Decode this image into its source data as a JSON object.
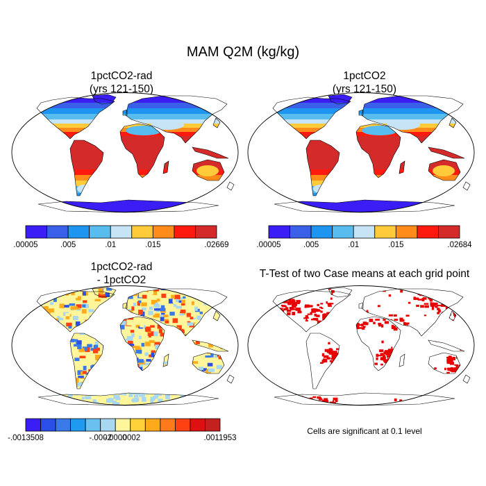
{
  "figure": {
    "title": "MAM Q2M (kg/kg)"
  },
  "panels": {
    "p1": {
      "title_line1": "1pctCO2-rad",
      "title_line2": "(yrs 121-150)"
    },
    "p2": {
      "title_line1": "1pctCO2",
      "title_line2": "(yrs 121-150)"
    },
    "p3": {
      "title_line1": "1pctCO2-rad",
      "title_line2": "- 1pctCO2"
    },
    "p4": {
      "title_line1": "T-Test of two Case means at each grid point",
      "note": "Cells are significant at 0.1 level"
    }
  },
  "colorbars": {
    "abs1": {
      "colors": [
        "#3a1ef5",
        "#3a5fe8",
        "#1e95f0",
        "#58bdee",
        "#c6e4f6",
        "#ffcb3a",
        "#ff8c1a",
        "#ff1a10",
        "#d42a2a"
      ],
      "labels": [
        ".00005",
        ".005",
        ".01",
        ".015",
        ".02669"
      ],
      "label_positions": [
        0,
        2,
        4,
        6,
        9
      ]
    },
    "abs2": {
      "colors": [
        "#3a1ef5",
        "#3a5fe8",
        "#1e95f0",
        "#58bdee",
        "#c6e4f6",
        "#ffcb3a",
        "#ff8c1a",
        "#ff1a10",
        "#d42a2a"
      ],
      "labels": [
        ".00005",
        ".005",
        ".01",
        ".015",
        ".02684"
      ],
      "label_positions": [
        0,
        2,
        4,
        6,
        9
      ]
    },
    "diff": {
      "colors": [
        "#3a1ef5",
        "#2a4fe8",
        "#3a7ae8",
        "#1e9af0",
        "#6ac0ee",
        "#a8d8f0",
        "#fff59a",
        "#ffd23a",
        "#ffaa1a",
        "#ff7a1a",
        "#ff4010",
        "#e01010",
        "#c42020"
      ],
      "labels": [
        "-.0013508",
        "-.0002",
        "-.0000",
        ".0002",
        ".0011953"
      ],
      "label_positions": [
        0,
        5,
        6,
        7,
        13
      ]
    }
  },
  "map_fill": {
    "moist_colors": {
      "wet": "#d42a2a",
      "wet2": "#ff1a10",
      "warm": "#ff8c1a",
      "mid": "#ffcb3a",
      "pale": "#c6e4f6",
      "cool": "#58bdee",
      "cold": "#1e95f0",
      "colder": "#3a5fe8",
      "polar": "#3a1ef5"
    },
    "diff_colors": {
      "pos_hi": "#ff4010",
      "pos_mid": "#ffaa1a",
      "pos_lo": "#fff59a",
      "neg_lo": "#a8d8f0",
      "neg_mid": "#3a7ae8",
      "neg_hi": "#2a4fe8"
    },
    "ttest_color": "#e80000"
  }
}
